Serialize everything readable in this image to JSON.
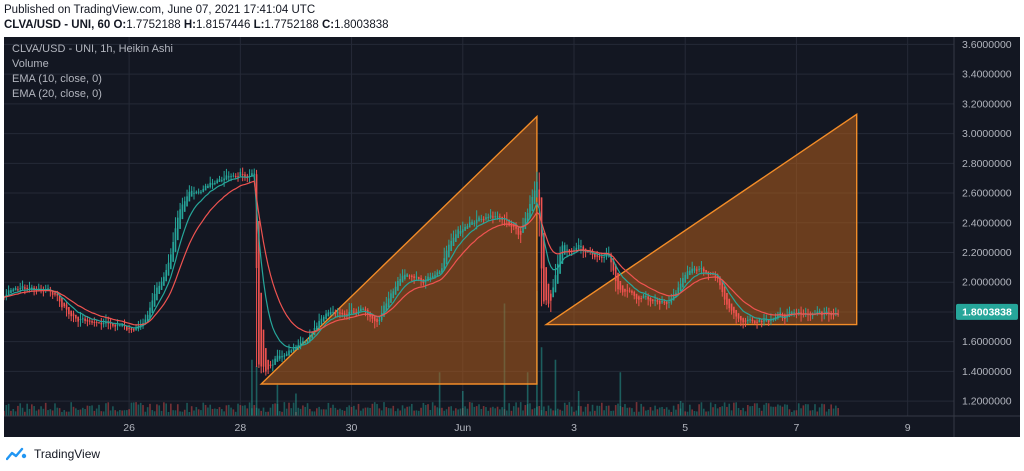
{
  "header": {
    "published": "Published on TradingView.com, June 07, 2021 17:41:04 UTC",
    "symbol": "CLVA/USD - UNI, 60",
    "o_label": "O:",
    "o_value": "1.7752188",
    "h_label": "H:",
    "h_value": "1.8157446",
    "l_label": "L:",
    "l_value": "1.7752188",
    "c_label": "C:",
    "c_value": "1.8003838"
  },
  "legend": {
    "title": "CLVA/USD - UNI, 1h, Heikin Ashi",
    "volume": "Volume",
    "ema10": "EMA (10, close, 0)",
    "ema20": "EMA (20, close, 0)"
  },
  "footer": {
    "brand": "TradingView"
  },
  "colors": {
    "background": "#131722",
    "grid": "#252a37",
    "up": "#26a69a",
    "down": "#ef5350",
    "ema10": "#26a69a",
    "ema20": "#ef5350",
    "pattern_stroke": "#f28c28",
    "pattern_fill": "#b25d1c",
    "price_tag": "#26a69a",
    "axis_text": "#b2b5be"
  },
  "chart_data": {
    "type": "candlestick",
    "price_scale": [
      "3.6000000",
      "3.4000000",
      "3.2000000",
      "3.0000000",
      "2.8000000",
      "2.6000000",
      "2.4000000",
      "2.2000000",
      "2.0000000",
      "1.8000000",
      "1.6000000",
      "1.4000000",
      "1.2000000"
    ],
    "ylim": [
      1.1,
      3.65
    ],
    "x_ticks": [
      {
        "label": "26",
        "t": 24
      },
      {
        "label": "28",
        "t": 72
      },
      {
        "label": "30",
        "t": 120
      },
      {
        "label": "Jun",
        "t": 168
      },
      {
        "label": "3",
        "t": 216
      },
      {
        "label": "5",
        "t": 264
      },
      {
        "label": "7",
        "t": 312
      },
      {
        "label": "9",
        "t": 360
      }
    ],
    "xlim": [
      -30,
      380
    ],
    "last_price": "1.8003838",
    "anchors": [
      [
        -30,
        1.9
      ],
      [
        -28,
        1.96
      ],
      [
        -20,
        1.96
      ],
      [
        -10,
        1.95
      ],
      [
        -5,
        1.83
      ],
      [
        0,
        1.76
      ],
      [
        5,
        1.74
      ],
      [
        15,
        1.72
      ],
      [
        25,
        1.69
      ],
      [
        30,
        1.72
      ],
      [
        34,
        1.9
      ],
      [
        40,
        2.1
      ],
      [
        45,
        2.45
      ],
      [
        50,
        2.62
      ],
      [
        55,
        2.62
      ],
      [
        60,
        2.68
      ],
      [
        70,
        2.72
      ],
      [
        78,
        2.72
      ],
      [
        79,
        1.45
      ],
      [
        82,
        1.42
      ],
      [
        90,
        1.52
      ],
      [
        100,
        1.62
      ],
      [
        108,
        1.8
      ],
      [
        116,
        1.78
      ],
      [
        124,
        1.84
      ],
      [
        130,
        1.72
      ],
      [
        136,
        1.9
      ],
      [
        142,
        2.05
      ],
      [
        150,
        2.0
      ],
      [
        158,
        2.07
      ],
      [
        162,
        2.28
      ],
      [
        170,
        2.4
      ],
      [
        178,
        2.45
      ],
      [
        186,
        2.42
      ],
      [
        192,
        2.32
      ],
      [
        196,
        2.5
      ],
      [
        198,
        2.6
      ],
      [
        200,
        2.73
      ],
      [
        202,
        1.88
      ],
      [
        205,
        1.85
      ],
      [
        210,
        2.25
      ],
      [
        214,
        2.22
      ],
      [
        218,
        2.25
      ],
      [
        222,
        2.18
      ],
      [
        226,
        2.15
      ],
      [
        230,
        2.22
      ],
      [
        234,
        1.97
      ],
      [
        242,
        1.9
      ],
      [
        250,
        1.88
      ],
      [
        256,
        1.85
      ],
      [
        262,
        2.02
      ],
      [
        268,
        2.1
      ],
      [
        276,
        2.06
      ],
      [
        282,
        1.84
      ],
      [
        288,
        1.74
      ],
      [
        296,
        1.75
      ],
      [
        304,
        1.77
      ],
      [
        312,
        1.79
      ],
      [
        320,
        1.79
      ],
      [
        330,
        1.8
      ]
    ],
    "volume_spikes": [
      {
        "t": 77,
        "v": 0.45
      },
      {
        "t": 79,
        "v": 0.4
      },
      {
        "t": 88,
        "v": 0.25
      },
      {
        "t": 96,
        "v": 0.18
      },
      {
        "t": 158,
        "v": 0.35
      },
      {
        "t": 168,
        "v": 0.2
      },
      {
        "t": 186,
        "v": 0.9
      },
      {
        "t": 196,
        "v": 0.35
      },
      {
        "t": 200,
        "v": 1.0
      },
      {
        "t": 202,
        "v": 0.55
      },
      {
        "t": 208,
        "v": 0.45
      },
      {
        "t": 218,
        "v": 0.2
      },
      {
        "t": 236,
        "v": 0.35
      },
      {
        "t": 262,
        "v": 0.12
      }
    ],
    "patterns": [
      {
        "name": "triangle-1",
        "points": [
          [
            81,
            1.315
          ],
          [
            200,
            1.315
          ],
          [
            200,
            3.115
          ]
        ]
      },
      {
        "name": "triangle-2",
        "points": [
          [
            204,
            1.715
          ],
          [
            338,
            1.715
          ],
          [
            338,
            3.13
          ]
        ]
      }
    ]
  }
}
